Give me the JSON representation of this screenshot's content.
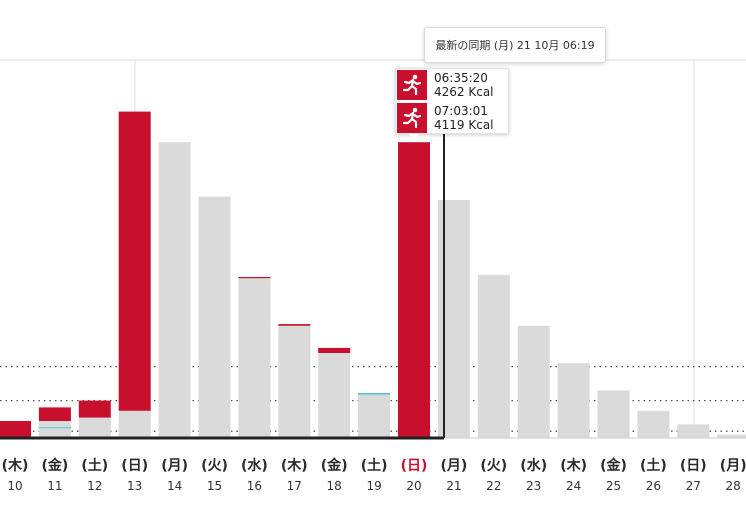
{
  "chart_data": {
    "type": "bar",
    "categories": [
      {
        "weekday": "(木)",
        "day": "10"
      },
      {
        "weekday": "(金)",
        "day": "11"
      },
      {
        "weekday": "(土)",
        "day": "12"
      },
      {
        "weekday": "(日)",
        "day": "13"
      },
      {
        "weekday": "(月)",
        "day": "14"
      },
      {
        "weekday": "(火)",
        "day": "15"
      },
      {
        "weekday": "(水)",
        "day": "16"
      },
      {
        "weekday": "(木)",
        "day": "17"
      },
      {
        "weekday": "(金)",
        "day": "18"
      },
      {
        "weekday": "(土)",
        "day": "19"
      },
      {
        "weekday": "(日)",
        "day": "20"
      },
      {
        "weekday": "(月)",
        "day": "21"
      },
      {
        "weekday": "(火)",
        "day": "22"
      },
      {
        "weekday": "(水)",
        "day": "23"
      },
      {
        "weekday": "(木)",
        "day": "24"
      },
      {
        "weekday": "(金)",
        "day": "25"
      },
      {
        "weekday": "(土)",
        "day": "26"
      },
      {
        "weekday": "(日)",
        "day": "27"
      },
      {
        "weekday": "(月)",
        "day": "28"
      }
    ],
    "highlighted_category": "20",
    "series": [
      {
        "values": [
          0,
          5,
          6,
          8,
          87,
          71,
          47,
          33,
          25,
          13,
          0,
          70,
          48,
          33,
          22,
          14,
          8,
          4,
          1
        ]
      },
      {
        "values": [
          5,
          4,
          5,
          88,
          0,
          0,
          0.3,
          0.5,
          1.5,
          0,
          87,
          0,
          0,
          0,
          0,
          0,
          0,
          0,
          0
        ]
      }
    ],
    "reference_levels": [
      2,
      11,
      21
    ],
    "ylim": [
      0,
      100
    ],
    "colors": {
      "activity": "#c8102e",
      "baseline": "#dadada",
      "accent_line": "#4fc3d9",
      "cursor": "#222222",
      "highlight_label": "#c8102e"
    }
  },
  "tooltip": {
    "sync_label": "最新の同期 (月) 21 10月 06:19"
  },
  "activities": [
    {
      "icon": "running-icon",
      "duration": "06:35:20",
      "calories": "4262 Kcal"
    },
    {
      "icon": "running-icon",
      "duration": "07:03:01",
      "calories": "4119 Kcal"
    }
  ]
}
